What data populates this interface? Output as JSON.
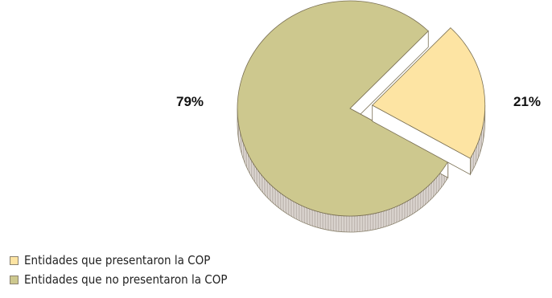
{
  "chart_data": {
    "type": "pie",
    "title": "",
    "slices": [
      {
        "label": "Entidades que presentaron la COP",
        "value": 21,
        "display": "21%",
        "color": "#fde4a3",
        "exploded": true
      },
      {
        "label": "Entidades que no presentaron la COP",
        "value": 79,
        "display": "79%",
        "color": "#cdc88e",
        "exploded": false
      }
    ],
    "style": "3d",
    "legend": "bottom-left"
  },
  "labels": {
    "pct_main": "79%",
    "pct_exploded": "21%"
  },
  "legend": [
    {
      "label": "Entidades que presentaron la COP",
      "color": "#fde4a3"
    },
    {
      "label": "Entidades que no presentaron la COP",
      "color": "#cdc88e"
    }
  ]
}
